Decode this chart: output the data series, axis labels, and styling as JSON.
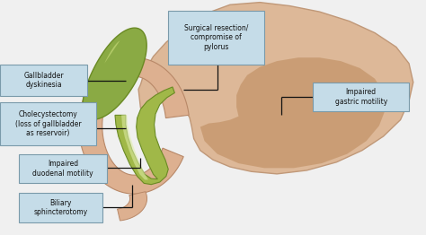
{
  "bg_color": "#f0f0f0",
  "box_color": "#c5dce8",
  "box_edge": "#7a9aaa",
  "line_color": "#111111",
  "stomach_outer_color": "#ddb898",
  "stomach_outer_edge": "#c09878",
  "stomach_inner_color": "#c4956a",
  "duodenum_outer_color": "#ddb090",
  "duodenum_outer_edge": "#b88868",
  "duodenum_inner_color": "#f0e0d0",
  "gallbladder_color": "#8aaa44",
  "gallbladder_edge": "#6a8a24",
  "bile_duct_color": "#a0b848",
  "bile_duct_light": "#c8d888",
  "label_configs": [
    {
      "text": "Gallbladder\ndyskinesia",
      "bx": 0.005,
      "by": 0.595,
      "bw": 0.195,
      "bh": 0.125,
      "lines": [
        [
          0.2,
          0.655,
          0.295,
          0.655
        ]
      ]
    },
    {
      "text": "Cholecystectomy\n(loss of gallbladder\nas reservoir)",
      "bx": 0.005,
      "by": 0.385,
      "bw": 0.215,
      "bh": 0.175,
      "lines": [
        [
          0.215,
          0.455,
          0.295,
          0.455
        ],
        [
          0.215,
          0.56,
          0.215,
          0.455
        ]
      ]
    },
    {
      "text": "Impaired\nduodenal motility",
      "bx": 0.05,
      "by": 0.225,
      "bw": 0.195,
      "bh": 0.115,
      "lines": [
        [
          0.245,
          0.285,
          0.33,
          0.285
        ],
        [
          0.33,
          0.285,
          0.33,
          0.33
        ]
      ]
    },
    {
      "text": "Biliary\nsphincterotomy",
      "bx": 0.05,
      "by": 0.06,
      "bw": 0.185,
      "bh": 0.115,
      "lines": [
        [
          0.235,
          0.12,
          0.31,
          0.12
        ],
        [
          0.31,
          0.12,
          0.31,
          0.215
        ]
      ]
    },
    {
      "text": "Surgical resection/\ncompromise of\npylorus",
      "bx": 0.4,
      "by": 0.73,
      "bw": 0.215,
      "bh": 0.22,
      "lines": [
        [
          0.51,
          0.73,
          0.51,
          0.62
        ],
        [
          0.51,
          0.62,
          0.43,
          0.62
        ]
      ]
    },
    {
      "text": "Impaired\ngastric motility",
      "bx": 0.74,
      "by": 0.53,
      "bw": 0.215,
      "bh": 0.115,
      "lines": [
        [
          0.74,
          0.588,
          0.66,
          0.588
        ],
        [
          0.66,
          0.588,
          0.66,
          0.51
        ]
      ]
    }
  ]
}
